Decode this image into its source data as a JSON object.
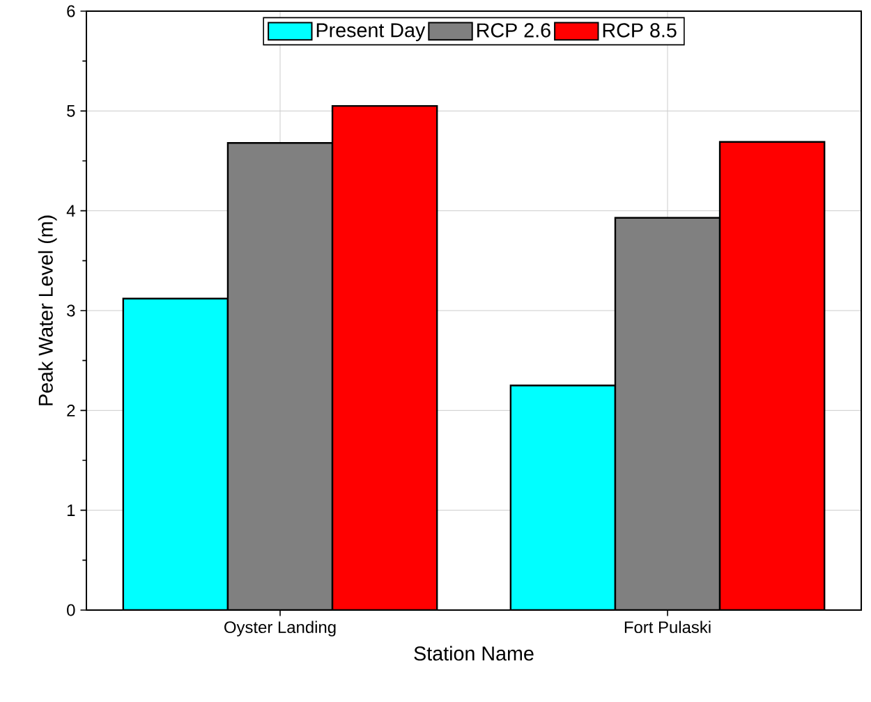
{
  "chart_data": {
    "type": "bar",
    "xlabel": "Station Name",
    "ylabel": "Peak Water Level (m)",
    "categories": [
      "Oyster Landing",
      "Fort Pulaski"
    ],
    "series": [
      {
        "name": "Present Day",
        "color": "#00ffff",
        "values": [
          3.12,
          2.25
        ]
      },
      {
        "name": "RCP 2.6",
        "color": "#808080",
        "values": [
          4.68,
          3.93
        ]
      },
      {
        "name": "RCP 8.5",
        "color": "#ff0000",
        "values": [
          5.05,
          4.69
        ]
      }
    ],
    "ylim": [
      0,
      6
    ],
    "yticks": [
      0,
      1,
      2,
      3,
      4,
      5,
      6
    ],
    "grid": true,
    "legend": "top"
  }
}
